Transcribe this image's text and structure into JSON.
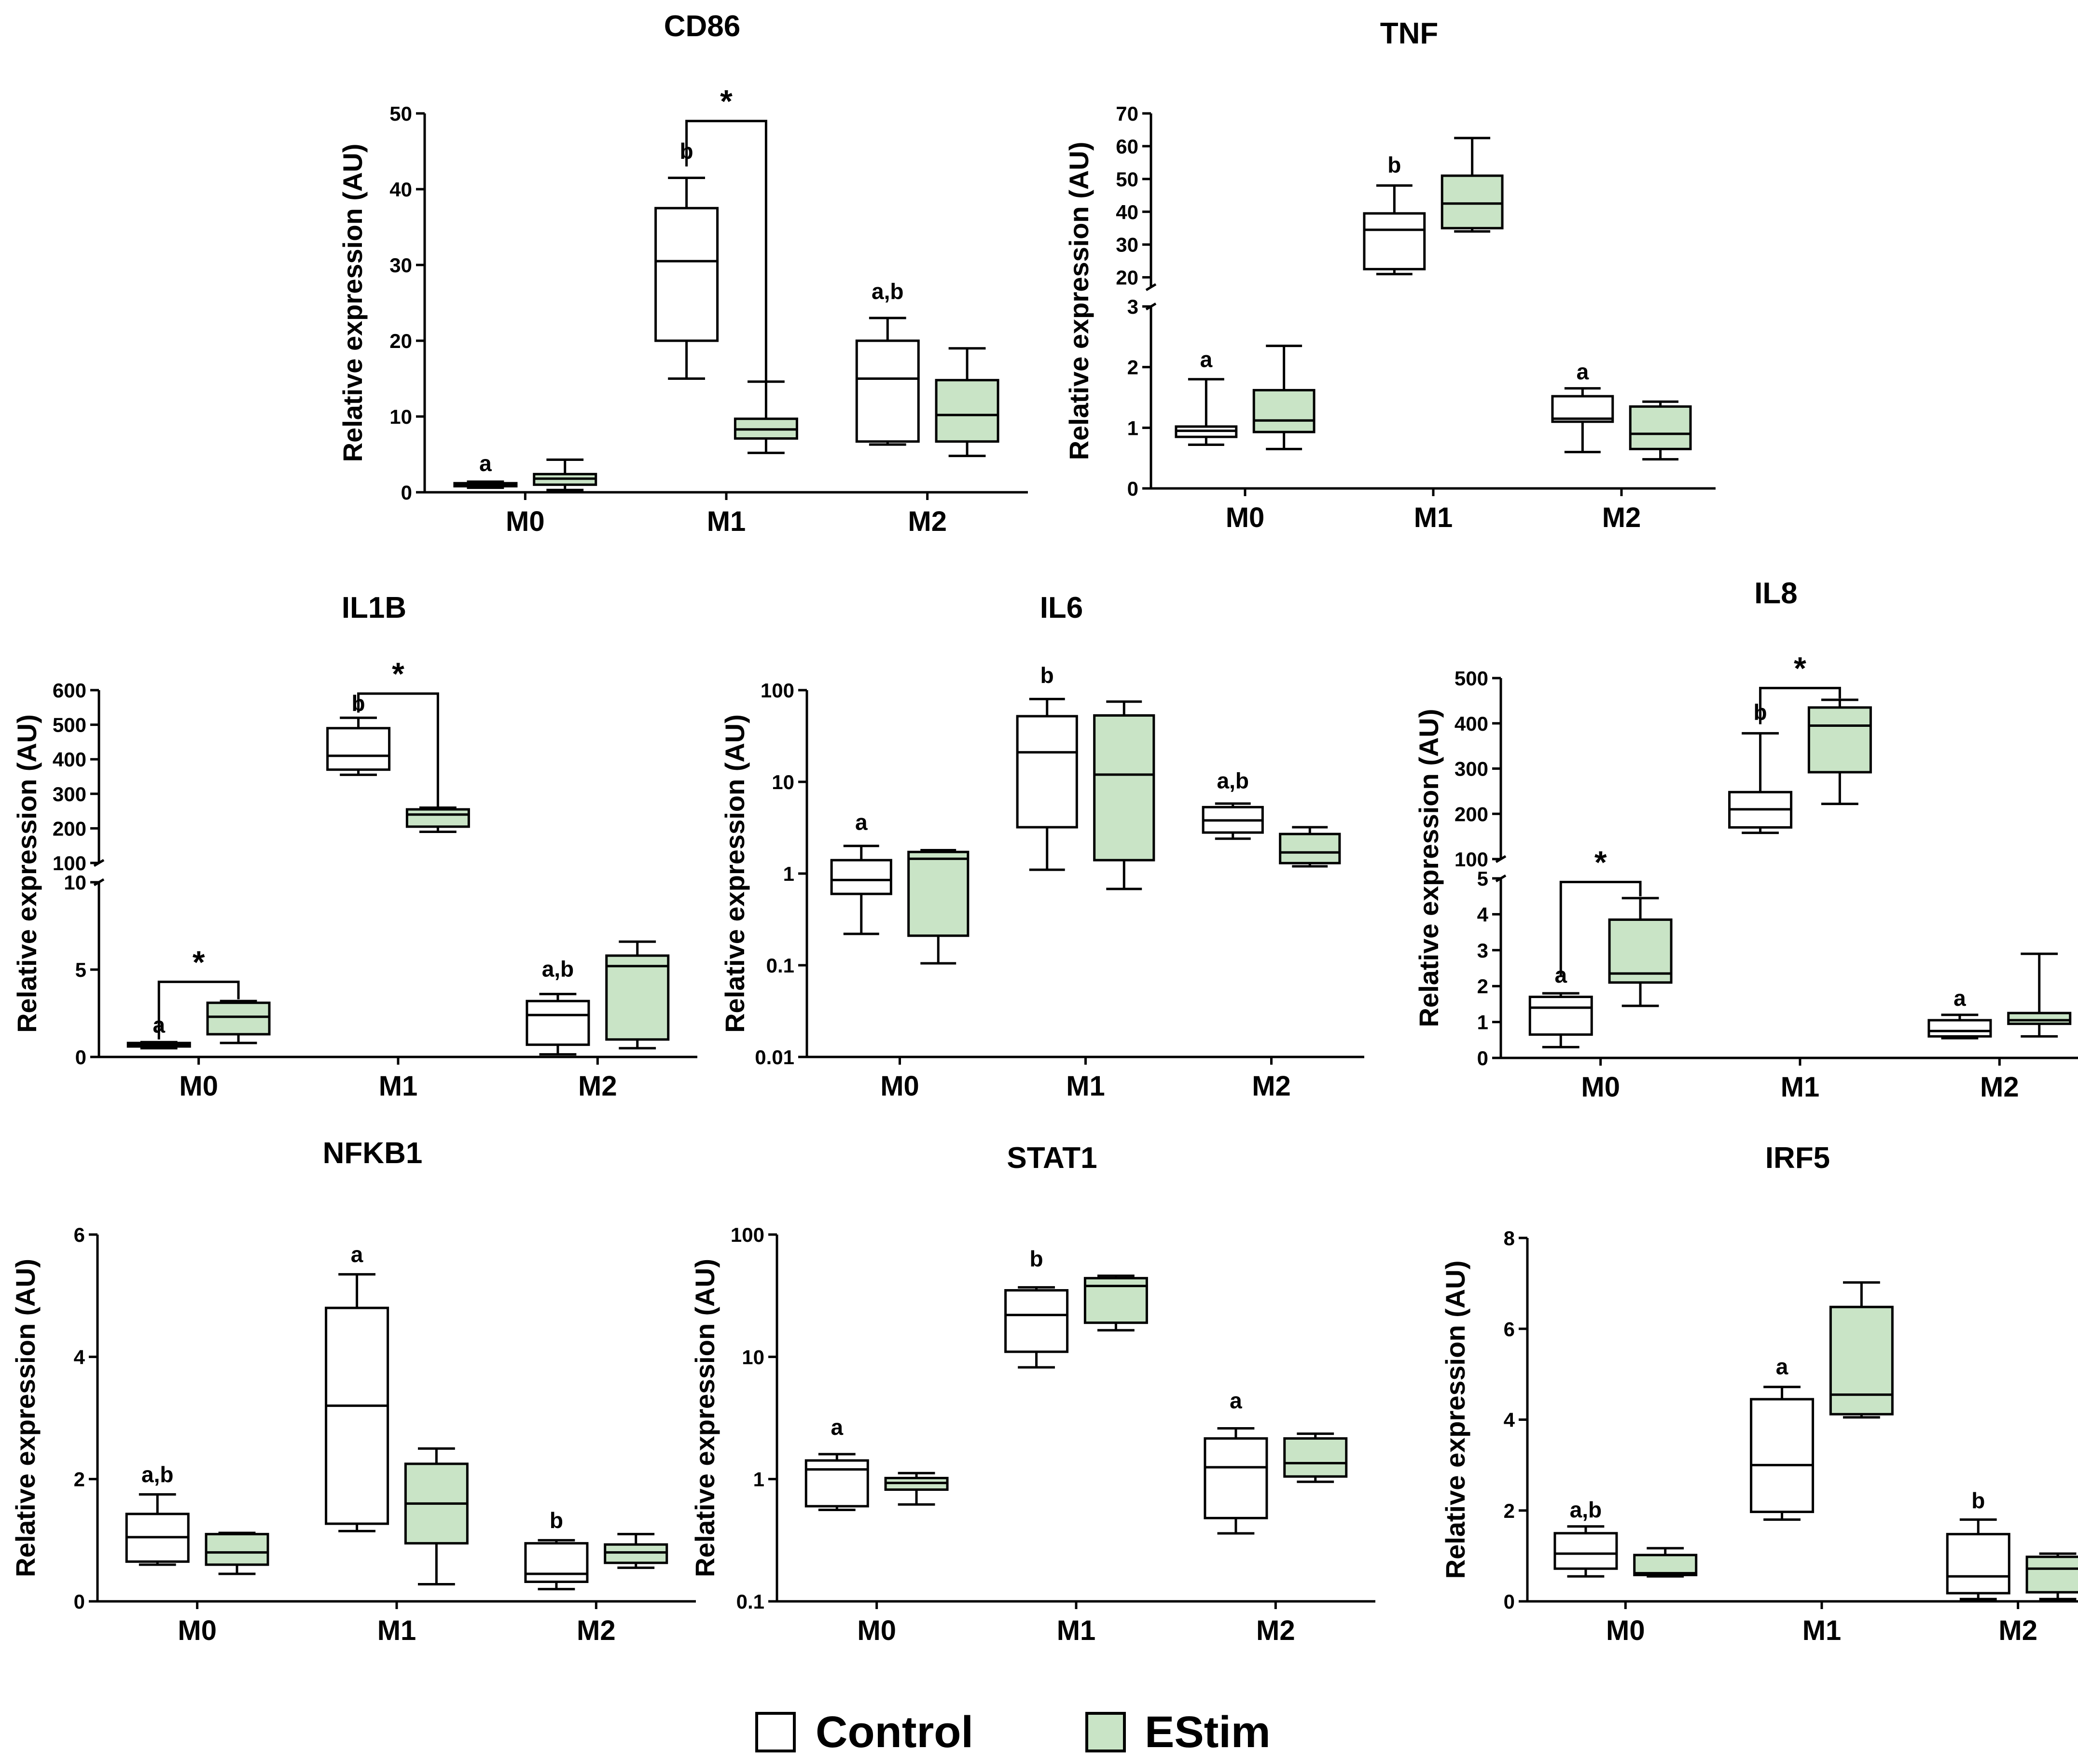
{
  "colors": {
    "control": "#ffffff",
    "estim": "#c9e4c6",
    "stroke": "#000000"
  },
  "legend": {
    "control": "Control",
    "estim": "EStim"
  },
  "chart_data": [
    {
      "type": "box",
      "title": "CD86",
      "ylabel": "Relative expression (AU)",
      "scale": "linear",
      "ylim": [
        0,
        50
      ],
      "yticks": [
        0,
        10,
        20,
        30,
        40,
        50
      ],
      "categories": [
        "M0",
        "M1",
        "M2"
      ],
      "series": [
        {
          "name": "Control",
          "boxes": [
            {
              "min": 0.6,
              "q1": 0.8,
              "median": 1.0,
              "q3": 1.2,
              "max": 1.4
            },
            {
              "min": 15,
              "q1": 20,
              "median": 30.5,
              "q3": 37.5,
              "max": 41.5
            },
            {
              "min": 6.3,
              "q1": 6.7,
              "median": 15,
              "q3": 20,
              "max": 23
            }
          ]
        },
        {
          "name": "EStim",
          "boxes": [
            {
              "min": 0.3,
              "q1": 1.0,
              "median": 1.8,
              "q3": 2.4,
              "max": 4.3
            },
            {
              "min": 5.2,
              "q1": 7.1,
              "median": 8.3,
              "q3": 9.7,
              "max": 14.6
            },
            {
              "min": 4.8,
              "q1": 6.7,
              "median": 10.2,
              "q3": 14.8,
              "max": 19
            }
          ]
        }
      ],
      "letters": [
        {
          "cat": 0,
          "text": "a",
          "y": 2.8
        },
        {
          "cat": 1,
          "text": "b",
          "y": 44
        },
        {
          "cat": 2,
          "text": "a,b",
          "y": 25.5
        }
      ],
      "sig": [
        {
          "cat": 1,
          "text": "*",
          "y": 49,
          "left": 43,
          "right": 14.6
        }
      ]
    },
    {
      "type": "box",
      "title": "TNF",
      "ylabel": "Relative expression (AU)",
      "scale": "broken",
      "lower": {
        "ylim": [
          0,
          3
        ],
        "yticks": [
          0,
          1,
          2,
          3
        ]
      },
      "upper": {
        "ylim": [
          17,
          70
        ],
        "yticks": [
          20,
          30,
          40,
          50,
          60,
          70
        ]
      },
      "categories": [
        "M0",
        "M1",
        "M2"
      ],
      "series": [
        {
          "name": "Control",
          "boxes": [
            {
              "min": 0.72,
              "q1": 0.85,
              "median": 0.95,
              "q3": 1.02,
              "max": 1.8
            },
            {
              "min": 21,
              "q1": 22.5,
              "median": 34.5,
              "q3": 39.5,
              "max": 48
            },
            {
              "min": 0.6,
              "q1": 1.1,
              "median": 1.15,
              "q3": 1.52,
              "max": 1.65
            }
          ]
        },
        {
          "name": "EStim",
          "boxes": [
            {
              "min": 0.65,
              "q1": 0.93,
              "median": 1.12,
              "q3": 1.62,
              "max": 2.35
            },
            {
              "min": 34,
              "q1": 35,
              "median": 42.5,
              "q3": 51,
              "max": 62.5
            },
            {
              "min": 0.48,
              "q1": 0.65,
              "median": 0.9,
              "q3": 1.35,
              "max": 1.43
            }
          ]
        }
      ],
      "letters": [
        {
          "cat": 0,
          "text": "a",
          "y": 2.0,
          "seg": "lower"
        },
        {
          "cat": 1,
          "text": "b",
          "y": 52,
          "seg": "upper"
        },
        {
          "cat": 2,
          "text": "a",
          "y": 1.8,
          "seg": "lower"
        }
      ],
      "sig": []
    },
    {
      "type": "box",
      "title": "IL1B",
      "ylabel": "Relative expression (AU)",
      "scale": "broken",
      "lower": {
        "ylim": [
          0,
          10
        ],
        "yticks": [
          0,
          5,
          10
        ]
      },
      "upper": {
        "ylim": [
          100,
          600
        ],
        "yticks": [
          100,
          200,
          300,
          400,
          500,
          600
        ]
      },
      "categories": [
        "M0",
        "M1",
        "M2"
      ],
      "series": [
        {
          "name": "Control",
          "boxes": [
            {
              "min": 0.5,
              "q1": 0.6,
              "median": 0.7,
              "q3": 0.8,
              "max": 0.85
            },
            {
              "min": 355,
              "q1": 370,
              "median": 410,
              "q3": 490,
              "max": 520
            },
            {
              "min": 0.15,
              "q1": 0.7,
              "median": 2.4,
              "q3": 3.2,
              "max": 3.6
            }
          ]
        },
        {
          "name": "EStim",
          "boxes": [
            {
              "min": 0.8,
              "q1": 1.3,
              "median": 2.3,
              "q3": 3.1,
              "max": 3.2
            },
            {
              "min": 190,
              "q1": 205,
              "median": 240,
              "q3": 255,
              "max": 260
            },
            {
              "min": 0.5,
              "q1": 1.0,
              "median": 5.2,
              "q3": 5.8,
              "max": 6.6
            }
          ]
        }
      ],
      "letters": [
        {
          "cat": 0,
          "text": "a",
          "y": 1.4,
          "seg": "lower"
        },
        {
          "cat": 1,
          "text": "b",
          "y": 540,
          "seg": "upper"
        },
        {
          "cat": 2,
          "text": "a,b",
          "y": 4.6,
          "seg": "lower"
        }
      ],
      "sig": [
        {
          "cat": 1,
          "text": "*",
          "y": 590,
          "left": 535,
          "right": 262,
          "seg": "upper"
        },
        {
          "cat": 0,
          "text": "*",
          "y": 4.3,
          "left": 1.0,
          "right": 3.3,
          "seg": "lower"
        }
      ]
    },
    {
      "type": "box",
      "title": "IL6",
      "ylabel": "Relative expression (AU)",
      "scale": "log",
      "ylim": [
        0.01,
        100
      ],
      "yticks": [
        0.01,
        0.1,
        1,
        10,
        100
      ],
      "yticklabels": [
        "0.01",
        "0.1",
        "1",
        "10",
        "100"
      ],
      "categories": [
        "M0",
        "M1",
        "M2"
      ],
      "series": [
        {
          "name": "Control",
          "boxes": [
            {
              "min": 0.22,
              "q1": 0.6,
              "median": 0.85,
              "q3": 1.4,
              "max": 2.0
            },
            {
              "min": 1.1,
              "q1": 3.2,
              "median": 21,
              "q3": 52,
              "max": 80
            },
            {
              "min": 2.4,
              "q1": 2.8,
              "median": 3.8,
              "q3": 5.3,
              "max": 5.8
            }
          ]
        },
        {
          "name": "EStim",
          "boxes": [
            {
              "min": 0.105,
              "q1": 0.21,
              "median": 1.45,
              "q3": 1.72,
              "max": 1.8
            },
            {
              "min": 0.68,
              "q1": 1.4,
              "median": 12,
              "q3": 53,
              "max": 75
            },
            {
              "min": 1.2,
              "q1": 1.3,
              "median": 1.7,
              "q3": 2.7,
              "max": 3.2
            }
          ]
        }
      ],
      "letters": [
        {
          "cat": 0,
          "text": "a",
          "y": 3.0
        },
        {
          "cat": 1,
          "text": "b",
          "y": 120
        },
        {
          "cat": 2,
          "text": "a,b",
          "y": 8.5
        }
      ],
      "sig": []
    },
    {
      "type": "box",
      "title": "IL8",
      "ylabel": "Relative expression (AU)",
      "scale": "broken",
      "lower": {
        "ylim": [
          0,
          5
        ],
        "yticks": [
          0,
          1,
          2,
          3,
          4,
          5
        ]
      },
      "upper": {
        "ylim": [
          100,
          500
        ],
        "yticks": [
          100,
          200,
          300,
          400,
          500
        ]
      },
      "categories": [
        "M0",
        "M1",
        "M2"
      ],
      "series": [
        {
          "name": "Control",
          "boxes": [
            {
              "min": 0.3,
              "q1": 0.65,
              "median": 1.4,
              "q3": 1.7,
              "max": 1.8
            },
            {
              "min": 158,
              "q1": 170,
              "median": 210,
              "q3": 248,
              "max": 378
            },
            {
              "min": 0.55,
              "q1": 0.6,
              "median": 0.75,
              "q3": 1.05,
              "max": 1.2
            }
          ]
        },
        {
          "name": "EStim",
          "boxes": [
            {
              "min": 1.45,
              "q1": 2.1,
              "median": 2.35,
              "q3": 3.85,
              "max": 4.45
            },
            {
              "min": 222,
              "q1": 292,
              "median": 395,
              "q3": 435,
              "max": 452
            },
            {
              "min": 0.6,
              "q1": 0.95,
              "median": 1.05,
              "q3": 1.25,
              "max": 2.9
            }
          ]
        }
      ],
      "letters": [
        {
          "cat": 0,
          "text": "a",
          "y": 2.1,
          "seg": "lower"
        },
        {
          "cat": 1,
          "text": "b",
          "y": 408,
          "seg": "upper"
        },
        {
          "cat": 2,
          "text": "a",
          "y": 1.45,
          "seg": "lower"
        }
      ],
      "sig": [
        {
          "cat": 1,
          "text": "*",
          "y": 478,
          "left": 398,
          "right": 455,
          "seg": "upper"
        },
        {
          "cat": 0,
          "text": "*",
          "y": 4.9,
          "left": 2.25,
          "right": 4.5,
          "seg": "lower"
        }
      ]
    },
    {
      "type": "box",
      "title": "NFKB1",
      "ylabel": "Relative expression (AU)",
      "scale": "linear",
      "ylim": [
        0,
        6
      ],
      "yticks": [
        0,
        2,
        4,
        6
      ],
      "categories": [
        "M0",
        "M1",
        "M2"
      ],
      "series": [
        {
          "name": "Control",
          "boxes": [
            {
              "min": 0.6,
              "q1": 0.65,
              "median": 1.05,
              "q3": 1.43,
              "max": 1.75
            },
            {
              "min": 1.15,
              "q1": 1.27,
              "median": 3.2,
              "q3": 4.8,
              "max": 5.35
            },
            {
              "min": 0.2,
              "q1": 0.32,
              "median": 0.45,
              "q3": 0.95,
              "max": 1.0
            }
          ]
        },
        {
          "name": "EStim",
          "boxes": [
            {
              "min": 0.45,
              "q1": 0.6,
              "median": 0.8,
              "q3": 1.1,
              "max": 1.12
            },
            {
              "min": 0.28,
              "q1": 0.95,
              "median": 1.6,
              "q3": 2.25,
              "max": 2.5
            },
            {
              "min": 0.55,
              "q1": 0.63,
              "median": 0.8,
              "q3": 0.93,
              "max": 1.1
            }
          ]
        }
      ],
      "letters": [
        {
          "cat": 0,
          "text": "a,b",
          "y": 1.95
        },
        {
          "cat": 1,
          "text": "a",
          "y": 5.55
        },
        {
          "cat": 2,
          "text": "b",
          "y": 1.2
        }
      ],
      "sig": []
    },
    {
      "type": "box",
      "title": "STAT1",
      "ylabel": "Relative expression (AU)",
      "scale": "log",
      "ylim": [
        0.1,
        100
      ],
      "yticks": [
        0.1,
        1,
        10,
        100
      ],
      "yticklabels": [
        "0.1",
        "1",
        "10",
        "100"
      ],
      "categories": [
        "M0",
        "M1",
        "M2"
      ],
      "series": [
        {
          "name": "Control",
          "boxes": [
            {
              "min": 0.56,
              "q1": 0.6,
              "median": 1.2,
              "q3": 1.42,
              "max": 1.6
            },
            {
              "min": 8.2,
              "q1": 11,
              "median": 22,
              "q3": 35,
              "max": 37
            },
            {
              "min": 0.36,
              "q1": 0.48,
              "median": 1.25,
              "q3": 2.15,
              "max": 2.6
            }
          ]
        },
        {
          "name": "EStim",
          "boxes": [
            {
              "min": 0.62,
              "q1": 0.82,
              "median": 0.93,
              "q3": 1.02,
              "max": 1.12
            },
            {
              "min": 16.5,
              "q1": 19,
              "median": 38,
              "q3": 44,
              "max": 46
            },
            {
              "min": 0.95,
              "q1": 1.05,
              "median": 1.35,
              "q3": 2.15,
              "max": 2.35
            }
          ]
        }
      ],
      "letters": [
        {
          "cat": 0,
          "text": "a",
          "y": 2.3
        },
        {
          "cat": 1,
          "text": "b",
          "y": 55
        },
        {
          "cat": 2,
          "text": "a",
          "y": 3.8
        }
      ],
      "sig": []
    },
    {
      "type": "box",
      "title": "IRF5",
      "ylabel": "Relative expression (AU)",
      "scale": "linear",
      "ylim": [
        0,
        8
      ],
      "yticks": [
        0,
        2,
        4,
        6,
        8
      ],
      "categories": [
        "M0",
        "M1",
        "M2"
      ],
      "series": [
        {
          "name": "Control",
          "boxes": [
            {
              "min": 0.55,
              "q1": 0.72,
              "median": 1.05,
              "q3": 1.5,
              "max": 1.65
            },
            {
              "min": 1.8,
              "q1": 1.97,
              "median": 3.0,
              "q3": 4.45,
              "max": 4.72
            },
            {
              "min": 0.05,
              "q1": 0.18,
              "median": 0.55,
              "q3": 1.48,
              "max": 1.8
            }
          ]
        },
        {
          "name": "EStim",
          "boxes": [
            {
              "min": 0.55,
              "q1": 0.58,
              "median": 0.62,
              "q3": 1.02,
              "max": 1.17
            },
            {
              "min": 4.05,
              "q1": 4.12,
              "median": 4.55,
              "q3": 6.48,
              "max": 7.02
            },
            {
              "min": 0.05,
              "q1": 0.2,
              "median": 0.72,
              "q3": 0.98,
              "max": 1.05
            }
          ]
        }
      ],
      "letters": [
        {
          "cat": 0,
          "text": "a,b",
          "y": 1.85
        },
        {
          "cat": 1,
          "text": "a",
          "y": 5.0
        },
        {
          "cat": 2,
          "text": "b",
          "y": 2.05
        }
      ],
      "sig": []
    }
  ]
}
